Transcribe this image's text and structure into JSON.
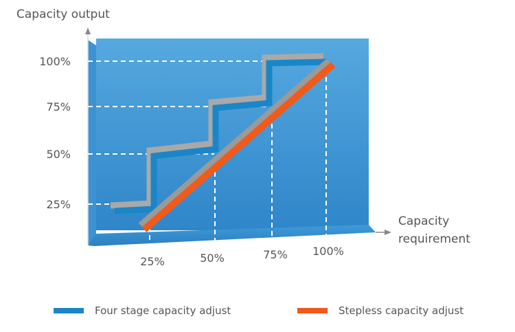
{
  "chart_data": {
    "type": "line",
    "title": "",
    "ylabel": "Capacity output",
    "xlabel": "Capacity requirement",
    "x_ticks": [
      "25%",
      "50%",
      "75%",
      "100%"
    ],
    "y_ticks": [
      "25%",
      "50%",
      "75%",
      "100%"
    ],
    "xlim": [
      0,
      100
    ],
    "ylim": [
      0,
      100
    ],
    "series": [
      {
        "name": "Four stage capacity adjust",
        "color": "#1a86c8",
        "type": "step",
        "points": [
          [
            0,
            25
          ],
          [
            25,
            25
          ],
          [
            25,
            50
          ],
          [
            50,
            50
          ],
          [
            50,
            75
          ],
          [
            75,
            75
          ],
          [
            75,
            100
          ],
          [
            100,
            100
          ]
        ]
      },
      {
        "name": "Stepless capacity adjust",
        "color": "#f05a1a",
        "type": "line",
        "points": [
          [
            25,
            0
          ],
          [
            100,
            100
          ]
        ]
      }
    ],
    "grid": "dashed white at tick values",
    "legend_position": "bottom"
  }
}
